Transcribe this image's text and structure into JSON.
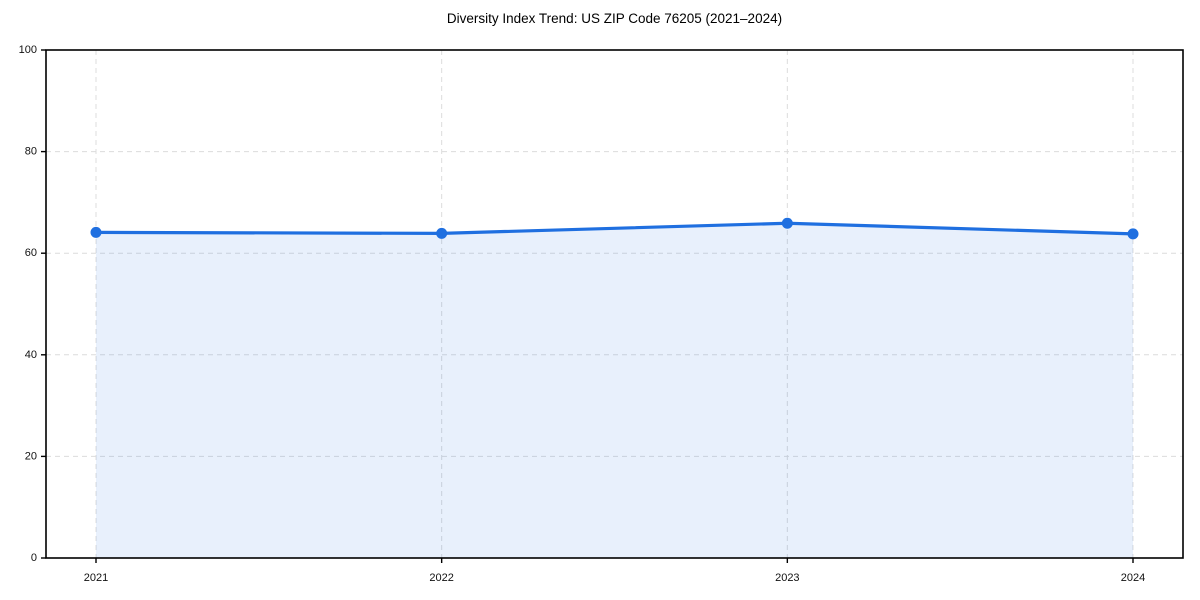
{
  "chart_data": {
    "type": "line",
    "title": "Diversity Index Trend: US ZIP Code 76205 (2021–2024)",
    "categories": [
      "2021",
      "2022",
      "2023",
      "2024"
    ],
    "series": [
      {
        "name": "Diversity Index",
        "values": [
          64.1,
          63.9,
          65.9,
          63.8
        ]
      }
    ],
    "xlabel": "",
    "ylabel": "",
    "ylim": [
      0,
      100
    ],
    "yticks": [
      0,
      20,
      40,
      60,
      80,
      100
    ],
    "grid": true,
    "grid_style": "dashed",
    "legend": "none",
    "area_fill": true,
    "marker": "circle",
    "colors": {
      "line": "#1f6fe0",
      "marker": "#1f6fe0",
      "area_fill_rgba": "rgba(31,111,224,0.10)",
      "grid": "#dcdcdc",
      "spine": "#000000",
      "tick_text": "#111111",
      "background": "#ffffff"
    }
  }
}
